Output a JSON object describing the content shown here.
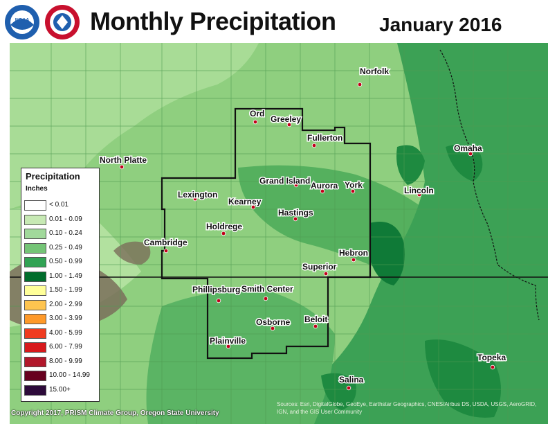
{
  "header": {
    "title": "Monthly Precipitation",
    "date": "January 2016",
    "logos": [
      {
        "icon": "noaa-logo-icon",
        "text": "NOAA"
      },
      {
        "icon": "nws-logo-icon",
        "text": "NATIONAL WEATHER SERVICE"
      }
    ]
  },
  "legend": {
    "title": "Precipitation",
    "units": "Inches",
    "items": [
      {
        "label": "< 0.01",
        "color": "#ffffff"
      },
      {
        "label": "0.01 - 0.09",
        "color": "#c7e9b4"
      },
      {
        "label": "0.10 - 0.24",
        "color": "#a1d99b"
      },
      {
        "label": "0.25 - 0.49",
        "color": "#74c476"
      },
      {
        "label": "0.50 - 0.99",
        "color": "#31a354"
      },
      {
        "label": "1.00 - 1.49",
        "color": "#006d2c"
      },
      {
        "label": "1.50 - 1.99",
        "color": "#ffff99"
      },
      {
        "label": "2.00 - 2.99",
        "color": "#fec44f"
      },
      {
        "label": "3.00 - 3.99",
        "color": "#fe9929"
      },
      {
        "label": "4.00 - 5.99",
        "color": "#f03b20"
      },
      {
        "label": "6.00 - 7.99",
        "color": "#d7191c"
      },
      {
        "label": "8.00 - 9.99",
        "color": "#b2182b"
      },
      {
        "label": "10.00 - 14.99",
        "color": "#67001f"
      },
      {
        "label": "15.00+",
        "color": "#2d0a3a"
      }
    ]
  },
  "cities": [
    {
      "name": "Norfolk"
    },
    {
      "name": "Ord"
    },
    {
      "name": "Greeley"
    },
    {
      "name": "Fullerton"
    },
    {
      "name": "Omaha"
    },
    {
      "name": "North Platte"
    },
    {
      "name": "Grand Island"
    },
    {
      "name": "Aurora"
    },
    {
      "name": "York"
    },
    {
      "name": "Lincoln"
    },
    {
      "name": "Lexington"
    },
    {
      "name": "Kearney"
    },
    {
      "name": "Hastings"
    },
    {
      "name": "Holdrege"
    },
    {
      "name": "Cambridge"
    },
    {
      "name": "Hebron"
    },
    {
      "name": "Superior"
    },
    {
      "name": "Phillipsburg"
    },
    {
      "name": "Smith Center"
    },
    {
      "name": "Osborne"
    },
    {
      "name": "Beloit"
    },
    {
      "name": "Plainville"
    },
    {
      "name": "Topeka"
    },
    {
      "name": "Salina"
    }
  ],
  "credits": {
    "left": "Copyright 2017, PRISM Climate Group, Oregon State University",
    "right": "Sources: Esri, DigitalGlobe, GeoEye, Earthstar Geographics, CNES/Airbus DS, USDA, USGS, AeroGRID, IGN, and the GIS User Community"
  },
  "colors": {
    "light_green": "#a1d99b",
    "mid_green": "#74c476",
    "dark_green": "#31a354",
    "very_dark_green": "#006d2c",
    "terrain_brown": "#6b6050"
  }
}
